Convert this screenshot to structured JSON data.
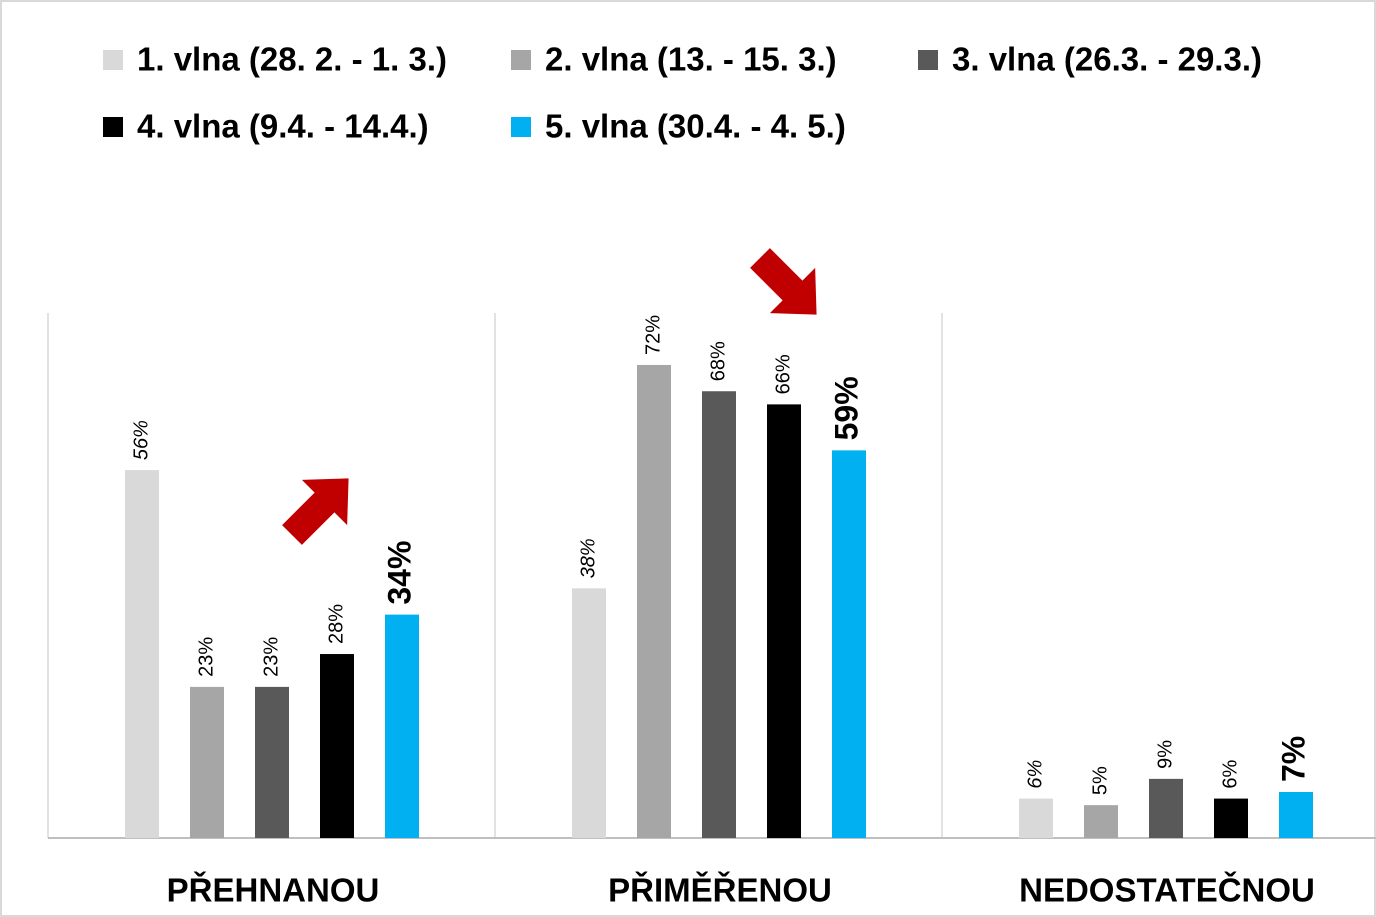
{
  "chart_data": {
    "type": "bar",
    "categories": [
      "PŘEHNANOU",
      "PŘIMĚŘENOU",
      "NEDOSTATEČNOU"
    ],
    "series": [
      {
        "name": "1. vlna (28. 2. - 1. 3.)",
        "color": "#d9d9d9",
        "values": [
          56,
          38,
          6
        ],
        "value_labels": [
          "56%",
          "38%",
          "6%"
        ]
      },
      {
        "name": "2. vlna (13. - 15. 3.)",
        "color": "#a6a6a6",
        "values": [
          23,
          72,
          5
        ],
        "value_labels": [
          "23%",
          "72%",
          "5%"
        ]
      },
      {
        "name": "3. vlna (26.3. - 29.3.)",
        "color": "#595959",
        "values": [
          23,
          68,
          9
        ],
        "value_labels": [
          "23%",
          "68%",
          "9%"
        ]
      },
      {
        "name": "4. vlna (9.4. - 14.4.)",
        "color": "#000000",
        "values": [
          28,
          66,
          6
        ],
        "value_labels": [
          "28%",
          "66%",
          "6%"
        ]
      },
      {
        "name": "5. vlna (30.4. - 4. 5.)",
        "color": "#00b0f0",
        "values": [
          34,
          59,
          7
        ],
        "value_labels": [
          "34%",
          "59%",
          "7%"
        ]
      }
    ]
  }
}
